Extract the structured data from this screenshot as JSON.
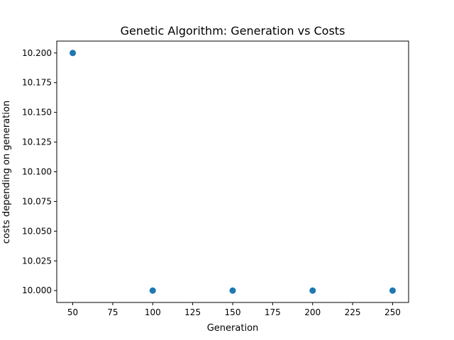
{
  "chart_data": {
    "type": "scatter",
    "title": "Genetic Algorithm: Generation vs Costs",
    "xlabel": "Generation",
    "ylabel": "costs depending on generation",
    "xlim": [
      40,
      260
    ],
    "ylim": [
      9.99,
      10.21
    ],
    "xticks": [
      50,
      75,
      100,
      125,
      150,
      175,
      200,
      225,
      250
    ],
    "yticks": [
      10.0,
      10.025,
      10.05,
      10.075,
      10.1,
      10.125,
      10.15,
      10.175,
      10.2
    ],
    "ytick_labels": [
      "10.000",
      "10.025",
      "10.050",
      "10.075",
      "10.100",
      "10.125",
      "10.150",
      "10.175",
      "10.200"
    ],
    "grid": false,
    "points": [
      {
        "x": 50,
        "y": 10.2
      },
      {
        "x": 100,
        "y": 10.0
      },
      {
        "x": 150,
        "y": 10.0
      },
      {
        "x": 200,
        "y": 10.0
      },
      {
        "x": 250,
        "y": 10.0
      }
    ],
    "marker_color": "#1f77b4"
  }
}
